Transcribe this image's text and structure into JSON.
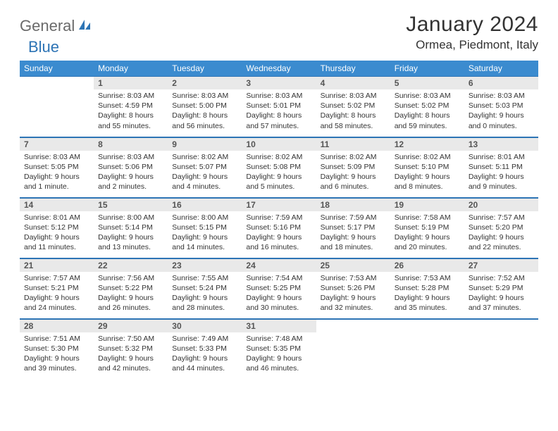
{
  "logo": {
    "text1": "General",
    "text2": "Blue"
  },
  "title": "January 2024",
  "location": "Ormea, Piedmont, Italy",
  "colors": {
    "header_bg": "#3b8bcf",
    "header_text": "#ffffff",
    "daynum_bg": "#e9e9e9",
    "rule": "#2d74b5",
    "logo_gray": "#6a6a6a",
    "logo_blue": "#2d74b5"
  },
  "weekdays": [
    "Sunday",
    "Monday",
    "Tuesday",
    "Wednesday",
    "Thursday",
    "Friday",
    "Saturday"
  ],
  "first_weekday_index": 1,
  "days": [
    {
      "n": 1,
      "sunrise": "8:03 AM",
      "sunset": "4:59 PM",
      "daylight": "8 hours and 55 minutes."
    },
    {
      "n": 2,
      "sunrise": "8:03 AM",
      "sunset": "5:00 PM",
      "daylight": "8 hours and 56 minutes."
    },
    {
      "n": 3,
      "sunrise": "8:03 AM",
      "sunset": "5:01 PM",
      "daylight": "8 hours and 57 minutes."
    },
    {
      "n": 4,
      "sunrise": "8:03 AM",
      "sunset": "5:02 PM",
      "daylight": "8 hours and 58 minutes."
    },
    {
      "n": 5,
      "sunrise": "8:03 AM",
      "sunset": "5:02 PM",
      "daylight": "8 hours and 59 minutes."
    },
    {
      "n": 6,
      "sunrise": "8:03 AM",
      "sunset": "5:03 PM",
      "daylight": "9 hours and 0 minutes."
    },
    {
      "n": 7,
      "sunrise": "8:03 AM",
      "sunset": "5:05 PM",
      "daylight": "9 hours and 1 minute."
    },
    {
      "n": 8,
      "sunrise": "8:03 AM",
      "sunset": "5:06 PM",
      "daylight": "9 hours and 2 minutes."
    },
    {
      "n": 9,
      "sunrise": "8:02 AM",
      "sunset": "5:07 PM",
      "daylight": "9 hours and 4 minutes."
    },
    {
      "n": 10,
      "sunrise": "8:02 AM",
      "sunset": "5:08 PM",
      "daylight": "9 hours and 5 minutes."
    },
    {
      "n": 11,
      "sunrise": "8:02 AM",
      "sunset": "5:09 PM",
      "daylight": "9 hours and 6 minutes."
    },
    {
      "n": 12,
      "sunrise": "8:02 AM",
      "sunset": "5:10 PM",
      "daylight": "9 hours and 8 minutes."
    },
    {
      "n": 13,
      "sunrise": "8:01 AM",
      "sunset": "5:11 PM",
      "daylight": "9 hours and 9 minutes."
    },
    {
      "n": 14,
      "sunrise": "8:01 AM",
      "sunset": "5:12 PM",
      "daylight": "9 hours and 11 minutes."
    },
    {
      "n": 15,
      "sunrise": "8:00 AM",
      "sunset": "5:14 PM",
      "daylight": "9 hours and 13 minutes."
    },
    {
      "n": 16,
      "sunrise": "8:00 AM",
      "sunset": "5:15 PM",
      "daylight": "9 hours and 14 minutes."
    },
    {
      "n": 17,
      "sunrise": "7:59 AM",
      "sunset": "5:16 PM",
      "daylight": "9 hours and 16 minutes."
    },
    {
      "n": 18,
      "sunrise": "7:59 AM",
      "sunset": "5:17 PM",
      "daylight": "9 hours and 18 minutes."
    },
    {
      "n": 19,
      "sunrise": "7:58 AM",
      "sunset": "5:19 PM",
      "daylight": "9 hours and 20 minutes."
    },
    {
      "n": 20,
      "sunrise": "7:57 AM",
      "sunset": "5:20 PM",
      "daylight": "9 hours and 22 minutes."
    },
    {
      "n": 21,
      "sunrise": "7:57 AM",
      "sunset": "5:21 PM",
      "daylight": "9 hours and 24 minutes."
    },
    {
      "n": 22,
      "sunrise": "7:56 AM",
      "sunset": "5:22 PM",
      "daylight": "9 hours and 26 minutes."
    },
    {
      "n": 23,
      "sunrise": "7:55 AM",
      "sunset": "5:24 PM",
      "daylight": "9 hours and 28 minutes."
    },
    {
      "n": 24,
      "sunrise": "7:54 AM",
      "sunset": "5:25 PM",
      "daylight": "9 hours and 30 minutes."
    },
    {
      "n": 25,
      "sunrise": "7:53 AM",
      "sunset": "5:26 PM",
      "daylight": "9 hours and 32 minutes."
    },
    {
      "n": 26,
      "sunrise": "7:53 AM",
      "sunset": "5:28 PM",
      "daylight": "9 hours and 35 minutes."
    },
    {
      "n": 27,
      "sunrise": "7:52 AM",
      "sunset": "5:29 PM",
      "daylight": "9 hours and 37 minutes."
    },
    {
      "n": 28,
      "sunrise": "7:51 AM",
      "sunset": "5:30 PM",
      "daylight": "9 hours and 39 minutes."
    },
    {
      "n": 29,
      "sunrise": "7:50 AM",
      "sunset": "5:32 PM",
      "daylight": "9 hours and 42 minutes."
    },
    {
      "n": 30,
      "sunrise": "7:49 AM",
      "sunset": "5:33 PM",
      "daylight": "9 hours and 44 minutes."
    },
    {
      "n": 31,
      "sunrise": "7:48 AM",
      "sunset": "5:35 PM",
      "daylight": "9 hours and 46 minutes."
    }
  ],
  "labels": {
    "sunrise": "Sunrise:",
    "sunset": "Sunset:",
    "daylight": "Daylight:"
  }
}
